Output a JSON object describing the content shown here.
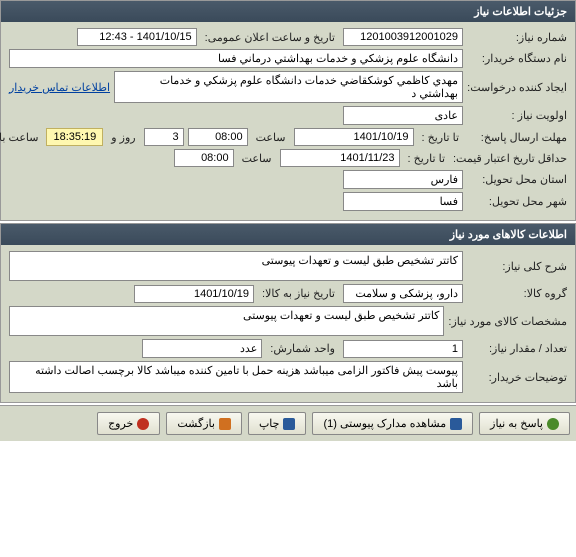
{
  "panel1": {
    "title": "جزئیات اطلاعات نیاز",
    "need_number_label": "شماره نیاز:",
    "need_number": "1201003912001029",
    "announce_label": "تاریخ و ساعت اعلان عمومی:",
    "announce_value": "1401/10/15 - 12:43",
    "buyer_label": "نام دستگاه خریدار:",
    "buyer_value": "دانشگاه علوم پزشكي و خدمات بهداشتي درماني فسا",
    "creator_label": "ایجاد کننده درخواست:",
    "creator_value": "مهدي كاظمي كوشكقاضي خدمات دانشگاه علوم پزشكي و خدمات بهداشتي د",
    "contact_link": "اطلاعات تماس خریدار",
    "priority_label": "اولویت نیاز :",
    "priority_value": "عادی",
    "deadline_label": "مهلت ارسال پاسخ:",
    "to_date_label": "تا تاریخ :",
    "deadline_date": "1401/10/19",
    "time_label": "ساعت",
    "deadline_time": "08:00",
    "days_label": "روز و",
    "days_value": "3",
    "countdown": "18:35:19",
    "remaining_label": "ساعت باقی مانده",
    "credit_label": "حداقل تاریخ اعتبار قیمت:",
    "credit_date": "1401/11/23",
    "credit_time": "08:00",
    "province_label": "استان محل تحویل:",
    "province_value": "فارس",
    "city_label": "شهر محل تحویل:",
    "city_value": "فسا"
  },
  "panel2": {
    "title": "اطلاعات کالاهای مورد نیاز",
    "desc_label": "شرح کلی نیاز:",
    "desc_value": "کاتتر تشخیص طبق لیست  و تعهدات پیوستی",
    "group_label": "گروه کالا:",
    "group_value": "دارو، پزشکی و سلامت",
    "needdate_label": "تاریخ نیاز به کالا:",
    "needdate_value": "1401/10/19",
    "spec_label": "مشخصات کالای مورد نیاز:",
    "spec_value": "کاتتر تشخیص طبق لیست  و تعهدات پیوستی",
    "qty_label": "تعداد / مقدار نیاز:",
    "qty_value": "1",
    "unit_label": "واحد شمارش:",
    "unit_value": "عدد",
    "notes_label": "توضیحات خریدار:",
    "notes_value": "پیوست پیش فاکتور الزامی میباشد هزینه حمل با تامین کننده میباشد کالا برچسب اصالت داشته باشد"
  },
  "buttons": {
    "respond": "پاسخ به نیاز",
    "attachments": "مشاهده مدارک پیوستی (1)",
    "print": "چاپ",
    "back": "بازگشت",
    "exit": "خروج"
  },
  "colors": {
    "panel_bg": "#d4d8c8",
    "header_bg": "#3a4a5a",
    "highlight": "#fff8b0"
  }
}
